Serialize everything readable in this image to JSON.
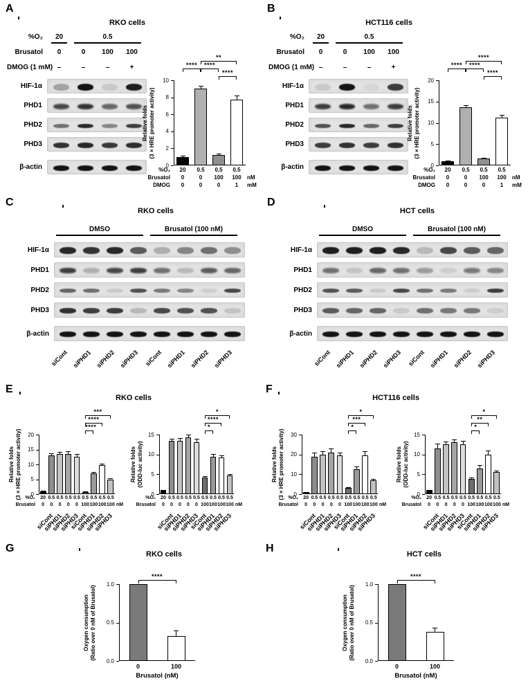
{
  "panels": {
    "A": {
      "label": "A",
      "title": "RKO cells",
      "blot": {
        "n_lanes": 4,
        "header_rows": [
          {
            "label": "%O₂",
            "first": "20",
            "rest": "0.5"
          },
          {
            "label": "Brusatol",
            "values": [
              "0",
              "0",
              "100",
              "100"
            ]
          },
          {
            "label": "DMOG (1 mM)",
            "values": [
              "–",
              "–",
              "–",
              "+"
            ]
          }
        ],
        "rows": [
          {
            "label": "HIF-1α",
            "bands": [
              0.3,
              1,
              0.12,
              0.95
            ],
            "bh": 10
          },
          {
            "label": "PHD1",
            "bands": [
              0.75,
              0.85,
              0.6,
              0.7
            ],
            "fuzzy": true
          },
          {
            "label": "PHD2",
            "bands": [
              0.55,
              0.9,
              0.45,
              0.8
            ],
            "bh": 6
          },
          {
            "label": "PHD3",
            "bands": [
              0.85,
              0.9,
              0.82,
              0.88
            ]
          },
          {
            "label": "β-actin",
            "bands": [
              1,
              1,
              1,
              1
            ],
            "gap": true
          }
        ]
      }
    },
    "B": {
      "label": "B",
      "title": "HCT116 cells",
      "blot": {
        "n_lanes": 4,
        "header_rows": [
          {
            "label": "%O₂",
            "first": "20",
            "rest": "0.5"
          },
          {
            "label": "Brusatol",
            "values": [
              "0",
              "0",
              "100",
              "100"
            ]
          },
          {
            "label": "DMOG (1 mM)",
            "values": [
              "–",
              "–",
              "–",
              "+"
            ]
          }
        ],
        "rows": [
          {
            "label": "HIF-1α",
            "bands": [
              0.12,
              1,
              0.06,
              0.8
            ],
            "bh": 10
          },
          {
            "label": "PHD1",
            "bands": [
              0.8,
              0.9,
              0.55,
              0.8
            ],
            "fuzzy": true
          },
          {
            "label": "PHD2",
            "bands": [
              0.7,
              0.9,
              0.6,
              0.8
            ],
            "bh": 6
          },
          {
            "label": "PHD3",
            "bands": [
              0.8,
              0.85,
              0.8,
              0.85
            ]
          },
          {
            "label": "β-actin",
            "bands": [
              1,
              1,
              1,
              1
            ],
            "gap": true
          }
        ]
      }
    },
    "C": {
      "label": "C",
      "title": "RKO cells",
      "blot": {
        "n_lanes": 8,
        "groups": [
          {
            "label": "DMSO",
            "from": 0,
            "to": 3
          },
          {
            "label": "Brusatol (100 nM)",
            "from": 4,
            "to": 7
          }
        ],
        "rows": [
          {
            "label": "HIF-1α",
            "bands": [
              0.9,
              0.85,
              0.9,
              0.65,
              0.25,
              0.45,
              0.55,
              0.4
            ],
            "bh": 10
          },
          {
            "label": "PHD1",
            "bands": [
              0.8,
              0.25,
              0.75,
              0.8,
              0.55,
              0.2,
              0.65,
              0.6
            ],
            "fuzzy": true
          },
          {
            "label": "PHD2",
            "bands": [
              0.6,
              0.55,
              0.12,
              0.7,
              0.5,
              0.45,
              0.1,
              0.75
            ],
            "bh": 6
          },
          {
            "label": "PHD3",
            "bands": [
              0.85,
              0.8,
              0.8,
              0.2,
              0.75,
              0.7,
              0.7,
              0.15
            ]
          },
          {
            "label": "β-actin",
            "bands": [
              1,
              1,
              1,
              1,
              1,
              1,
              1,
              1
            ],
            "gap": true
          }
        ],
        "lane_labels": [
          "siCont",
          "siPHD1",
          "siPHD2",
          "siPHD3",
          "siCont",
          "siPHD1",
          "siPHD2",
          "siPHD3"
        ]
      }
    },
    "D": {
      "label": "D",
      "title": "HCT cells",
      "blot": {
        "n_lanes": 8,
        "groups": [
          {
            "label": "DMSO",
            "from": 0,
            "to": 3
          },
          {
            "label": "Brusatol (100 nM)",
            "from": 4,
            "to": 7
          }
        ],
        "rows": [
          {
            "label": "HIF-1α",
            "bands": [
              0.95,
              0.95,
              0.95,
              0.9,
              0.2,
              0.75,
              0.65,
              0.6
            ],
            "bh": 10
          },
          {
            "label": "PHD1",
            "bands": [
              0.55,
              0.15,
              0.6,
              0.55,
              0.35,
              0.1,
              0.5,
              0.45
            ],
            "fuzzy": true
          },
          {
            "label": "PHD2",
            "bands": [
              0.7,
              0.65,
              0.12,
              0.75,
              0.55,
              0.5,
              0.1,
              0.8
            ],
            "bh": 6
          },
          {
            "label": "PHD3",
            "bands": [
              0.65,
              0.6,
              0.6,
              0.12,
              0.55,
              0.5,
              0.5,
              0.1
            ]
          },
          {
            "label": "β-actin",
            "bands": [
              1,
              1,
              1,
              1,
              1,
              1,
              1,
              1
            ],
            "gap": true
          }
        ],
        "lane_labels": [
          "siCont",
          "siPHD1",
          "siPHD2",
          "siPHD3",
          "siCont",
          "siPHD1",
          "siPHD2",
          "siPHD3"
        ]
      }
    },
    "E": {
      "label": "E",
      "title": "RKO cells"
    },
    "F": {
      "label": "F",
      "title": "HCT116 cells"
    },
    "G": {
      "label": "G",
      "title": "RKO cells"
    },
    "H": {
      "label": "H",
      "title": "HCT cells"
    }
  },
  "chart_data": [
    {
      "id": "A-HRE-luciferase",
      "type": "bar",
      "title": "",
      "ylabel_lines": [
        "Relative folds",
        "(3 × HRE promoter activity)"
      ],
      "ylim": [
        0,
        10
      ],
      "yticks": [
        0,
        2,
        4,
        6,
        8,
        10
      ],
      "values": [
        1,
        9,
        1.2,
        7.7
      ],
      "errors": [
        0.1,
        0.35,
        0.15,
        0.5
      ],
      "colors": [
        "#000000",
        "#b0b0b0",
        "#8f8f8f",
        "#ffffff"
      ],
      "xrows": [
        {
          "label": "%O₂",
          "values": [
            "20",
            "0.5",
            "0.5",
            "0.5"
          ],
          "unit": ""
        },
        {
          "label": "Brusatol",
          "values": [
            "0",
            "0",
            "100",
            "100"
          ],
          "unit": "nM"
        },
        {
          "label": "DMOG",
          "values": [
            "0",
            "0",
            "0",
            "1"
          ],
          "unit": "mM"
        }
      ],
      "sig": [
        {
          "from": 0,
          "to": 1,
          "label": "****",
          "level": 1
        },
        {
          "from": 1,
          "to": 2,
          "label": "****",
          "level": 1
        },
        {
          "from": 2,
          "to": 3,
          "label": "****",
          "level": 0
        },
        {
          "from": 1,
          "to": 3,
          "label": "**",
          "level": 2
        }
      ]
    },
    {
      "id": "B-HRE-luciferase",
      "type": "bar",
      "title": "",
      "ylabel_lines": [
        "Relative folds",
        "(3 × HRE promoter activity)"
      ],
      "ylim": [
        0,
        20
      ],
      "yticks": [
        0,
        5,
        10,
        15,
        20
      ],
      "values": [
        1,
        13.7,
        1.6,
        11.2
      ],
      "errors": [
        0.1,
        0.5,
        0.25,
        0.6
      ],
      "colors": [
        "#000000",
        "#b0b0b0",
        "#8f8f8f",
        "#ffffff"
      ],
      "xrows": [
        {
          "label": "%O₂",
          "values": [
            "20",
            "0.5",
            "0.5",
            "0.5"
          ],
          "unit": ""
        },
        {
          "label": "Brusatol",
          "values": [
            "0",
            "0",
            "100",
            "100"
          ],
          "unit": "nM"
        },
        {
          "label": "DMOG",
          "values": [
            "0",
            "0",
            "0",
            "1"
          ],
          "unit": "mM"
        }
      ],
      "sig": [
        {
          "from": 0,
          "to": 1,
          "label": "****",
          "level": 1
        },
        {
          "from": 1,
          "to": 2,
          "label": "****",
          "level": 1
        },
        {
          "from": 2,
          "to": 3,
          "label": "****",
          "level": 0
        },
        {
          "from": 1,
          "to": 3,
          "label": "****",
          "level": 2
        }
      ]
    },
    {
      "id": "E-HRE-luciferase",
      "type": "bar",
      "ylabel_lines": [
        "Relative folds",
        "(3 × HRE promoter activity)"
      ],
      "ylim": [
        0,
        20
      ],
      "yticks": [
        0,
        5,
        10,
        15,
        20
      ],
      "values": [
        1,
        13,
        13.5,
        13.5,
        12.5,
        0.7,
        7,
        9.7,
        5
      ],
      "errors": [
        0.1,
        0.8,
        0.7,
        0.9,
        1.1,
        0.15,
        0.5,
        0.6,
        0.4
      ],
      "colors": [
        "#000000",
        "#8e8e8e",
        "#c2c2c2",
        "#a5a5a5",
        "#dcdcdc",
        "#6e6e6e",
        "#999999",
        "#ffffff",
        "#c2c2c2"
      ],
      "xrows": [
        {
          "label": "%O₂",
          "values": [
            "20",
            "0.5",
            "0.5",
            "0.5",
            "0.5",
            "0.5",
            "0.5",
            "0.5",
            "0.5"
          ],
          "unit": ""
        },
        {
          "label": "Brusatol",
          "values": [
            "0",
            "0",
            "0",
            "0",
            "0",
            "100",
            "100",
            "100",
            "100"
          ],
          "unit": "nM"
        }
      ],
      "si_labels": [
        "",
        "siCont",
        "siPHD1",
        "siPHD2",
        "siPHD3",
        "siCont",
        "siPHD1",
        "siPHD2",
        "siPHD3"
      ],
      "sig": [
        {
          "from": 5,
          "to": 6,
          "label": "****",
          "level": 0
        },
        {
          "from": 5,
          "to": 7,
          "label": "****",
          "level": 1
        },
        {
          "from": 5,
          "to": 8,
          "label": "***",
          "level": 2
        }
      ]
    },
    {
      "id": "E-ODD-luciferase",
      "type": "bar",
      "ylabel_lines": [
        "Relative folds",
        "(ODD-luc activity)"
      ],
      "ylim": [
        0,
        15
      ],
      "yticks": [
        0,
        5,
        10,
        15
      ],
      "values": [
        1,
        13.5,
        13.5,
        14.3,
        13,
        4.2,
        9.5,
        9.2,
        4.7
      ],
      "errors": [
        0.1,
        0.5,
        0.6,
        0.7,
        0.9,
        0.3,
        0.6,
        0.5,
        0.4
      ],
      "colors": [
        "#000000",
        "#8e8e8e",
        "#c2c2c2",
        "#a5a5a5",
        "#dcdcdc",
        "#6e6e6e",
        "#999999",
        "#ffffff",
        "#c2c2c2"
      ],
      "xrows": [
        {
          "label": "%O₂",
          "values": [
            "20",
            "0.5",
            "0.5",
            "0.5",
            "0.5",
            "0.5",
            "0.5",
            "0.5",
            "0.5"
          ],
          "unit": ""
        },
        {
          "label": "Brusatol",
          "values": [
            "0",
            "0",
            "0",
            "0",
            "0",
            "100",
            "100",
            "100",
            "100"
          ],
          "unit": "nM"
        }
      ],
      "si_labels": [
        "",
        "siCont",
        "siPHD1",
        "siPHD2",
        "siPHD3",
        "siCont",
        "siPHD1",
        "siPHD2",
        "siPHD3"
      ],
      "sig": [
        {
          "from": 5,
          "to": 6,
          "label": "*",
          "level": 0
        },
        {
          "from": 5,
          "to": 7,
          "label": "****",
          "level": 1
        },
        {
          "from": 5,
          "to": 8,
          "label": "*",
          "level": 2
        }
      ]
    },
    {
      "id": "F-HRE-luciferase",
      "type": "bar",
      "ylabel_lines": [
        "Relative folds",
        "(3 × HRE promoter activity)"
      ],
      "ylim": [
        0,
        30
      ],
      "yticks": [
        0,
        10,
        20,
        30
      ],
      "values": [
        1,
        19,
        20,
        21,
        19.5,
        3,
        12.5,
        19.5,
        7
      ],
      "errors": [
        0.2,
        2,
        1.5,
        2,
        1.5,
        0.4,
        1.5,
        2,
        0.8
      ],
      "colors": [
        "#000000",
        "#8e8e8e",
        "#c2c2c2",
        "#a5a5a5",
        "#dcdcdc",
        "#6e6e6e",
        "#999999",
        "#ffffff",
        "#c2c2c2"
      ],
      "xrows": [
        {
          "label": "%O₂",
          "values": [
            "20",
            "0.5",
            "0.5",
            "0.5",
            "0.5",
            "0.5",
            "0.5",
            "0.5",
            "0.5"
          ],
          "unit": ""
        },
        {
          "label": "Brusatol",
          "values": [
            "0",
            "0",
            "0",
            "0",
            "0",
            "100",
            "100",
            "100",
            "100"
          ],
          "unit": "nM"
        }
      ],
      "si_labels": [
        "",
        "siCont",
        "siPHD1",
        "siPHD2",
        "siPHD3",
        "siCont",
        "siPHD1",
        "siPHD2",
        "siPHD3"
      ],
      "sig": [
        {
          "from": 5,
          "to": 6,
          "label": "*",
          "level": 0
        },
        {
          "from": 5,
          "to": 7,
          "label": "***",
          "level": 1
        },
        {
          "from": 5,
          "to": 8,
          "label": "*",
          "level": 2
        }
      ]
    },
    {
      "id": "F-ODD-luciferase",
      "type": "bar",
      "ylabel_lines": [
        "Relative folds",
        "(ODD-luc activity)"
      ],
      "ylim": [
        0,
        15
      ],
      "yticks": [
        0,
        5,
        10,
        15
      ],
      "values": [
        1,
        11.5,
        12.5,
        13,
        12.5,
        3.8,
        6.5,
        10,
        5.5
      ],
      "errors": [
        0.1,
        1.2,
        0.8,
        0.7,
        0.9,
        0.3,
        0.8,
        1,
        0.5
      ],
      "colors": [
        "#000000",
        "#8e8e8e",
        "#c2c2c2",
        "#a5a5a5",
        "#dcdcdc",
        "#6e6e6e",
        "#999999",
        "#ffffff",
        "#c2c2c2"
      ],
      "xrows": [
        {
          "label": "%O₂",
          "values": [
            "20",
            "0.5",
            "0.5",
            "0.5",
            "0.5",
            "0.5",
            "0.5",
            "0.5",
            "0.5"
          ],
          "unit": ""
        },
        {
          "label": "Brusatol",
          "values": [
            "0",
            "0",
            "0",
            "0",
            "0",
            "100",
            "100",
            "100",
            "100"
          ],
          "unit": "nM"
        }
      ],
      "si_labels": [
        "",
        "siCont",
        "siPHD1",
        "siPHD2",
        "siPHD3",
        "siCont",
        "siPHD1",
        "siPHD2",
        "siPHD3"
      ],
      "sig": [
        {
          "from": 5,
          "to": 6,
          "label": "*",
          "level": 0
        },
        {
          "from": 5,
          "to": 7,
          "label": "**",
          "level": 1
        },
        {
          "from": 5,
          "to": 8,
          "label": "*",
          "level": 2
        }
      ]
    },
    {
      "id": "G-oxygen-consumption",
      "type": "bar",
      "ylabel_lines": [
        "Oxygen consumption",
        "(Ratio over 0 nM of Brusatol)"
      ],
      "ylim": [
        0,
        1
      ],
      "yticks": [
        0,
        0.5,
        1
      ],
      "ytick_labels": [
        "0.0",
        "0.5",
        "1.0"
      ],
      "values": [
        1.0,
        0.32
      ],
      "errors": [
        0,
        0.08
      ],
      "colors": [
        "#7a7a7a",
        "#ffffff"
      ],
      "categories": [
        "0",
        "100"
      ],
      "xlabel": "Brusatol (nM)",
      "sig": [
        {
          "from": 0,
          "to": 1,
          "label": "****",
          "level": 0
        }
      ]
    },
    {
      "id": "H-oxygen-consumption",
      "type": "bar",
      "ylabel_lines": [
        "Oxygen consumption",
        "(Ratio over 0 nM of Brusatol)"
      ],
      "ylim": [
        0,
        1
      ],
      "yticks": [
        0,
        0.5,
        1
      ],
      "ytick_labels": [
        "0.0",
        "0.5",
        "1.0"
      ],
      "values": [
        1.0,
        0.38
      ],
      "errors": [
        0,
        0.05
      ],
      "colors": [
        "#7a7a7a",
        "#ffffff"
      ],
      "categories": [
        "0",
        "100"
      ],
      "xlabel": "Brusatol (nM)",
      "sig": [
        {
          "from": 0,
          "to": 1,
          "label": "****",
          "level": 0
        }
      ]
    }
  ]
}
